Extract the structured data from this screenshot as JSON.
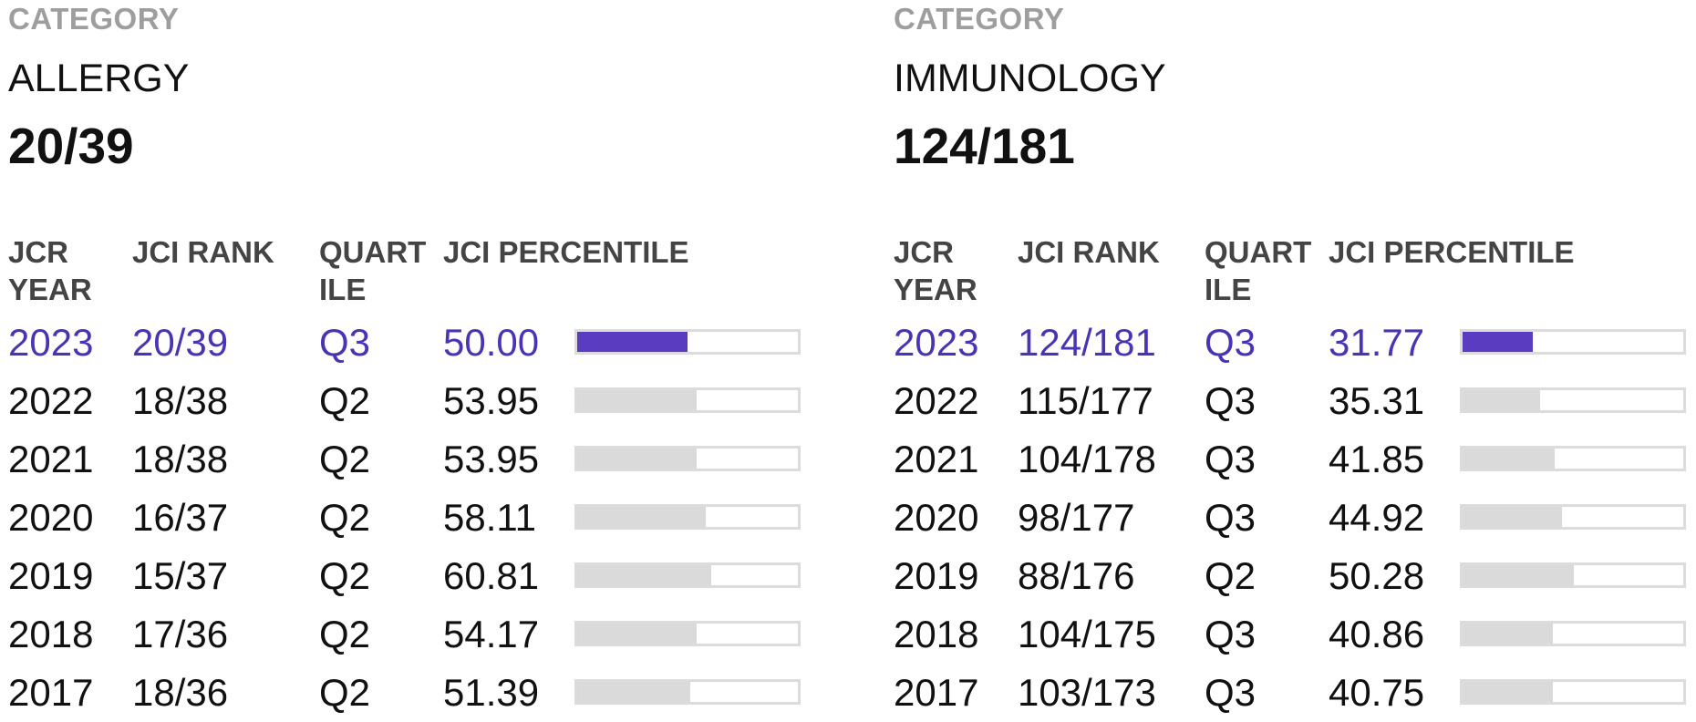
{
  "colors": {
    "accent": "#5a3cc0",
    "current_text": "#4a34b5",
    "bar_fill": "#dadada",
    "label_gray": "#9e9e9e"
  },
  "panels": [
    {
      "category_label": "CATEGORY",
      "category_name": "ALLERGY",
      "rank": "20/39",
      "headers": {
        "year": "JCR YEAR",
        "rank": "JCI RANK",
        "quartile": "QUART ILE",
        "percentile": "JCI PERCENTILE"
      },
      "rows": [
        {
          "year": "2023",
          "rank": "20/39",
          "quartile": "Q3",
          "percentile": "50.00",
          "pct_value": 50.0,
          "current": true
        },
        {
          "year": "2022",
          "rank": "18/38",
          "quartile": "Q2",
          "percentile": "53.95",
          "pct_value": 53.95,
          "current": false
        },
        {
          "year": "2021",
          "rank": "18/38",
          "quartile": "Q2",
          "percentile": "53.95",
          "pct_value": 53.95,
          "current": false
        },
        {
          "year": "2020",
          "rank": "16/37",
          "quartile": "Q2",
          "percentile": "58.11",
          "pct_value": 58.11,
          "current": false
        },
        {
          "year": "2019",
          "rank": "15/37",
          "quartile": "Q2",
          "percentile": "60.81",
          "pct_value": 60.81,
          "current": false
        },
        {
          "year": "2018",
          "rank": "17/36",
          "quartile": "Q2",
          "percentile": "54.17",
          "pct_value": 54.17,
          "current": false
        },
        {
          "year": "2017",
          "rank": "18/36",
          "quartile": "Q2",
          "percentile": "51.39",
          "pct_value": 51.39,
          "current": false
        }
      ]
    },
    {
      "category_label": "CATEGORY",
      "category_name": "IMMUNOLOGY",
      "rank": "124/181",
      "headers": {
        "year": "JCR YEAR",
        "rank": "JCI RANK",
        "quartile": "QUART ILE",
        "percentile": "JCI PERCENTILE"
      },
      "rows": [
        {
          "year": "2023",
          "rank": "124/181",
          "quartile": "Q3",
          "percentile": "31.77",
          "pct_value": 31.77,
          "current": true
        },
        {
          "year": "2022",
          "rank": "115/177",
          "quartile": "Q3",
          "percentile": "35.31",
          "pct_value": 35.31,
          "current": false
        },
        {
          "year": "2021",
          "rank": "104/178",
          "quartile": "Q3",
          "percentile": "41.85",
          "pct_value": 41.85,
          "current": false
        },
        {
          "year": "2020",
          "rank": "98/177",
          "quartile": "Q3",
          "percentile": "44.92",
          "pct_value": 44.92,
          "current": false
        },
        {
          "year": "2019",
          "rank": "88/176",
          "quartile": "Q2",
          "percentile": "50.28",
          "pct_value": 50.28,
          "current": false
        },
        {
          "year": "2018",
          "rank": "104/175",
          "quartile": "Q3",
          "percentile": "40.86",
          "pct_value": 40.86,
          "current": false
        },
        {
          "year": "2017",
          "rank": "103/173",
          "quartile": "Q3",
          "percentile": "40.75",
          "pct_value": 40.75,
          "current": false
        }
      ]
    }
  ]
}
